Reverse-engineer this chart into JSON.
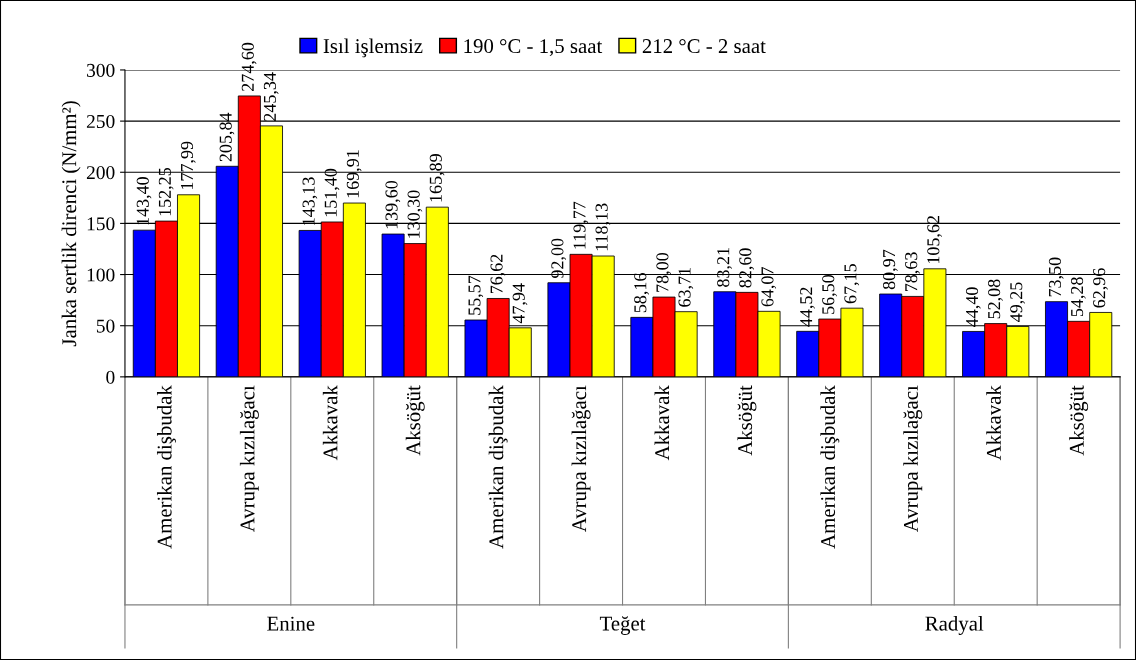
{
  "chart_data": {
    "type": "bar",
    "ylabel": "Janka sertlik direnci (N/mm²)",
    "categories": [
      "Amerikan dişbudak",
      "Avrupa kızılağacı",
      "Akkavak",
      "Aksöğüt",
      "Amerikan dişbudak",
      "Avrupa kızılağacı",
      "Akkavak",
      "Aksöğüt",
      "Amerikan dişbudak",
      "Avrupa kızılağacı",
      "Akkavak",
      "Aksöğüt"
    ],
    "series": [
      {
        "name": "Isıl işlemsiz",
        "color": "#0000ff",
        "values": [
          143.4,
          205.84,
          143.13,
          139.6,
          55.57,
          92.0,
          58.16,
          83.21,
          44.52,
          80.97,
          44.4,
          73.5
        ],
        "value_labels": [
          "143,40",
          "205,84",
          "143,13",
          "139,60",
          "55,57",
          "92,00",
          "58,16",
          "83,21",
          "44,52",
          "80,97",
          "44,40",
          "73,50"
        ]
      },
      {
        "name": "190 °C - 1,5 saat",
        "color": "#ff0000",
        "values": [
          152.25,
          274.6,
          151.4,
          130.3,
          76.62,
          119.77,
          78.0,
          82.6,
          56.5,
          78.63,
          52.08,
          54.28
        ],
        "value_labels": [
          "152,25",
          "274,60",
          "151,40",
          "130,30",
          "76,62",
          "119,77",
          "78,00",
          "82,60",
          "56,50",
          "78,63",
          "52,08",
          "54,28"
        ]
      },
      {
        "name": "212 °C - 2 saat",
        "color": "#ffff00",
        "values": [
          177.99,
          245.34,
          169.91,
          165.89,
          47.94,
          118.13,
          63.71,
          64.07,
          67.15,
          105.62,
          49.25,
          62.96
        ],
        "value_labels": [
          "177,99",
          "245,34",
          "169,91",
          "165,89",
          "47,94",
          "118,13",
          "63,71",
          "64,07",
          "67,15",
          "105,62",
          "49,25",
          "62,96"
        ]
      }
    ],
    "annotations": [
      "Enine",
      "Teğet",
      "Radyal"
    ],
    "ylim": [
      0,
      300
    ],
    "yticks": [
      0,
      50,
      100,
      150,
      200,
      250,
      300
    ],
    "grid": "y",
    "legend": "top"
  }
}
